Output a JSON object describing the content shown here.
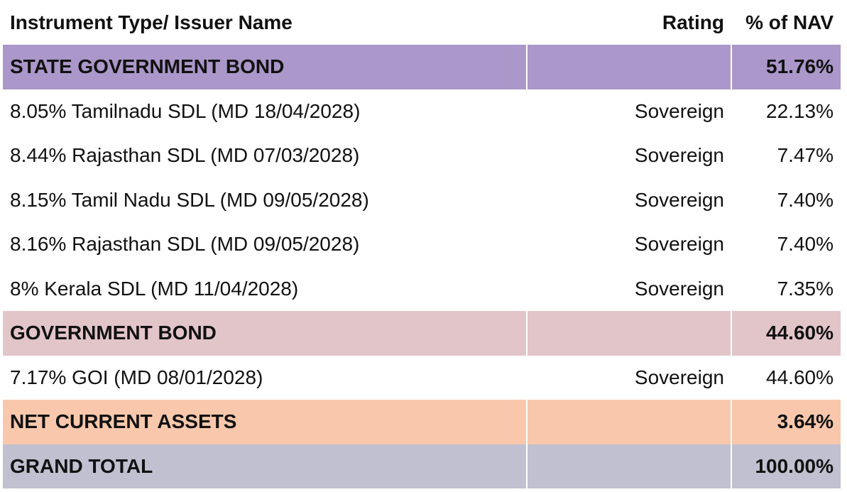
{
  "table": {
    "headers": {
      "name": "Instrument Type/ Issuer Name",
      "rating": "Rating",
      "nav": "% of NAV"
    },
    "rows": [
      {
        "type": "category",
        "style": "cat-sgb",
        "name": "STATE GOVERNMENT BOND",
        "rating": "",
        "nav": "51.76%"
      },
      {
        "type": "item",
        "name": "8.05% Tamilnadu SDL (MD 18/04/2028)",
        "rating": "Sovereign",
        "nav": "22.13%"
      },
      {
        "type": "item",
        "name": "8.44% Rajasthan SDL (MD 07/03/2028)",
        "rating": "Sovereign",
        "nav": "7.47%"
      },
      {
        "type": "item",
        "name": "8.15% Tamil Nadu SDL (MD 09/05/2028)",
        "rating": "Sovereign",
        "nav": "7.40%"
      },
      {
        "type": "item",
        "name": "8.16% Rajasthan SDL (MD 09/05/2028)",
        "rating": "Sovereign",
        "nav": "7.40%"
      },
      {
        "type": "item",
        "name": "8% Kerala SDL (MD 11/04/2028)",
        "rating": "Sovereign",
        "nav": "7.35%"
      },
      {
        "type": "category",
        "style": "cat-gb",
        "name": "GOVERNMENT BOND",
        "rating": "",
        "nav": "44.60%"
      },
      {
        "type": "item",
        "name": "7.17% GOI (MD 08/01/2028)",
        "rating": "Sovereign",
        "nav": "44.60%"
      },
      {
        "type": "category",
        "style": "cat-nca",
        "name": "NET CURRENT ASSETS",
        "rating": "",
        "nav": "3.64%"
      },
      {
        "type": "category",
        "style": "cat-gt",
        "name": "GRAND TOTAL",
        "rating": "",
        "nav": "100.00%"
      }
    ]
  },
  "colors": {
    "state_government_bond": "#ab97c9",
    "government_bond": "#e2c5c9",
    "net_current_assets": "#f9c8ac",
    "grand_total": "#c0c0d0"
  }
}
